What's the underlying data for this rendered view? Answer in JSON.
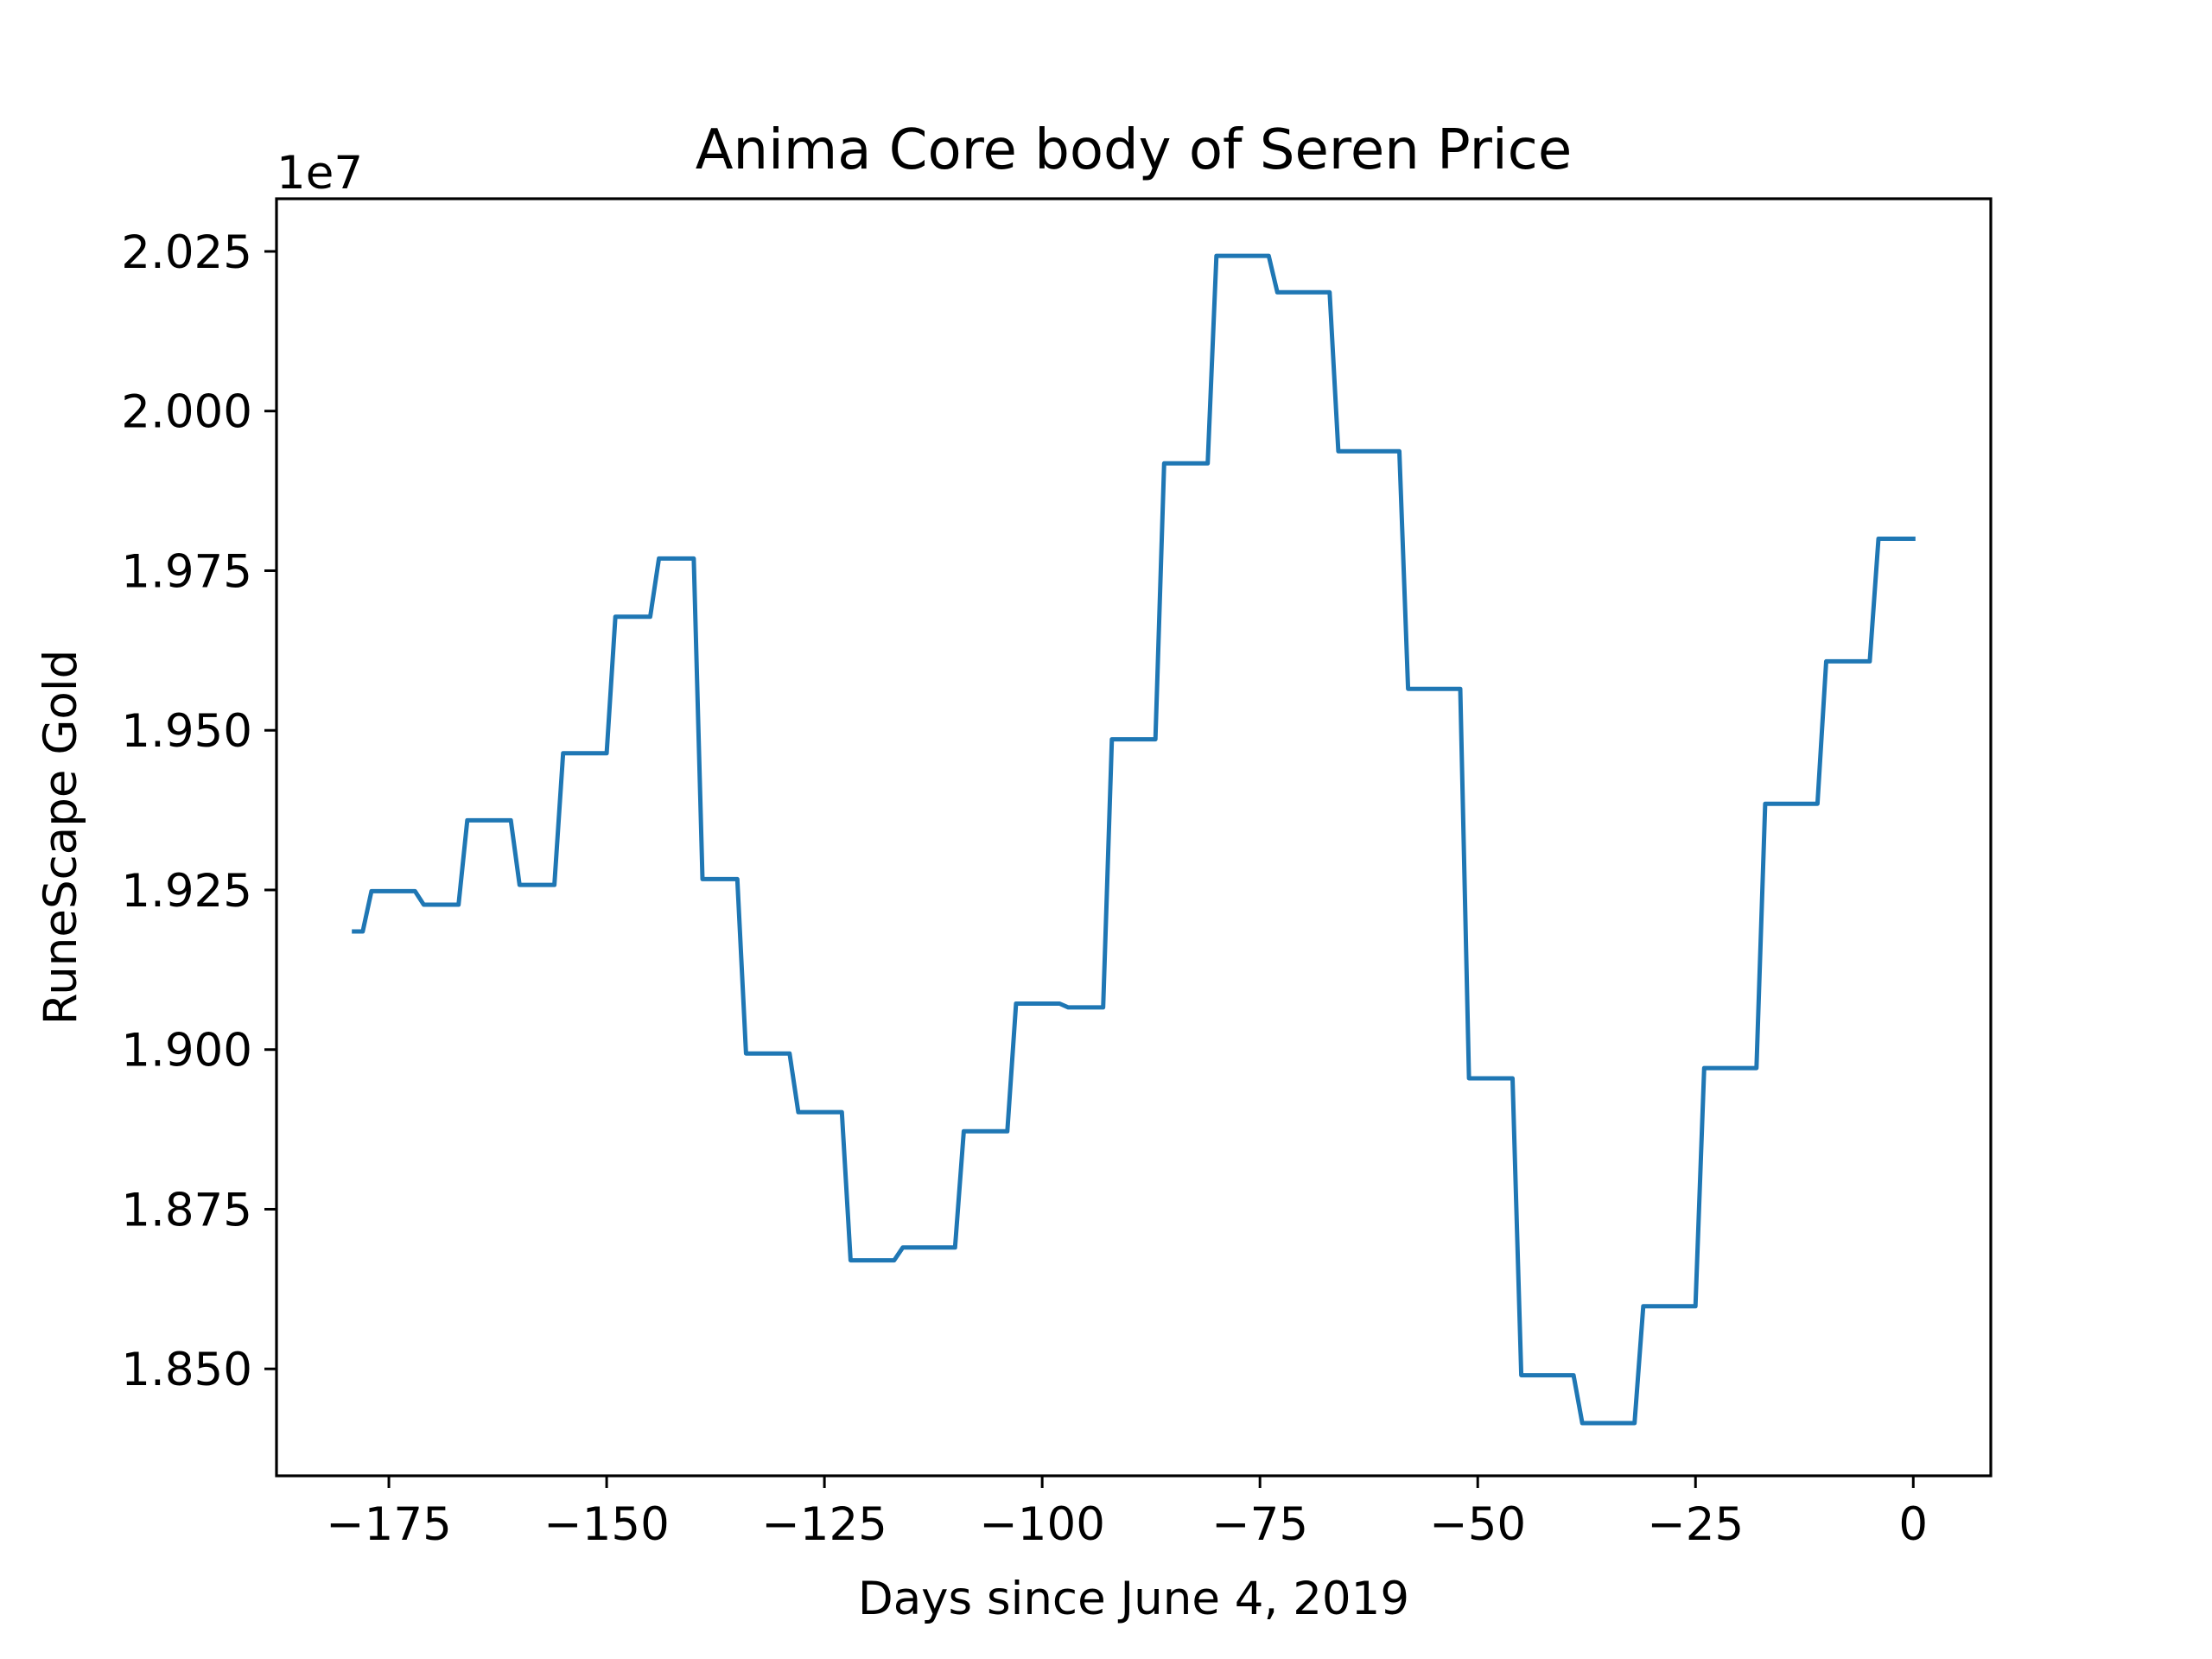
{
  "chart_data": {
    "type": "line",
    "title": "Anima Core body of Seren Price",
    "xlabel": "Days since June 4, 2019",
    "ylabel": "RuneScape Gold",
    "y_offset_label": "1e7",
    "xlim": [
      -187.9,
      8.9
    ],
    "ylim": [
      18.3325,
      20.3325
    ],
    "x_ticks": [
      -175,
      -150,
      -125,
      -100,
      -75,
      -50,
      -25,
      0
    ],
    "x_tick_labels": [
      "−175",
      "−150",
      "−125",
      "−100",
      "−75",
      "−50",
      "−25",
      "0"
    ],
    "y_ticks": [
      18.5,
      18.75,
      19.0,
      19.25,
      19.5,
      19.75,
      20.0,
      20.25
    ],
    "y_tick_labels": [
      "1.850",
      "1.875",
      "1.900",
      "1.925",
      "1.950",
      "1.975",
      "2.000",
      "2.025"
    ],
    "grid": false,
    "series": [
      {
        "name": "",
        "color": "#1f77b4",
        "x": [
          -179,
          -178,
          -177,
          -172,
          -171,
          -167,
          -166,
          -161,
          -160,
          -156,
          -155,
          -150,
          -149,
          -145,
          -144,
          -140,
          -139,
          -135,
          -134,
          -129,
          -128,
          -123,
          -122,
          -117,
          -116,
          -110,
          -109,
          -104,
          -103,
          -98,
          -97,
          -93,
          -92,
          -87,
          -86,
          -81,
          -80,
          -74,
          -73,
          -67,
          -66,
          -59,
          -58,
          -52,
          -51,
          -46,
          -45,
          -39,
          -38,
          -32,
          -31,
          -25,
          -24,
          -18,
          -17,
          -11,
          -10,
          -5,
          -4,
          0
        ],
        "y": [
          19.185,
          19.185,
          19.248,
          19.248,
          19.227,
          19.227,
          19.359,
          19.359,
          19.258,
          19.258,
          19.464,
          19.464,
          19.678,
          19.678,
          19.769,
          19.769,
          19.267,
          19.267,
          18.994,
          18.994,
          18.902,
          18.902,
          18.67,
          18.67,
          18.69,
          18.69,
          18.872,
          18.872,
          19.072,
          19.072,
          19.066,
          19.066,
          19.486,
          19.486,
          19.918,
          19.918,
          20.243,
          20.243,
          20.186,
          20.186,
          19.937,
          19.937,
          19.565,
          19.565,
          18.955,
          18.955,
          18.49,
          18.49,
          18.415,
          18.415,
          18.598,
          18.598,
          18.971,
          18.971,
          19.385,
          19.385,
          19.608,
          19.608,
          19.8,
          19.8
        ]
      }
    ]
  }
}
